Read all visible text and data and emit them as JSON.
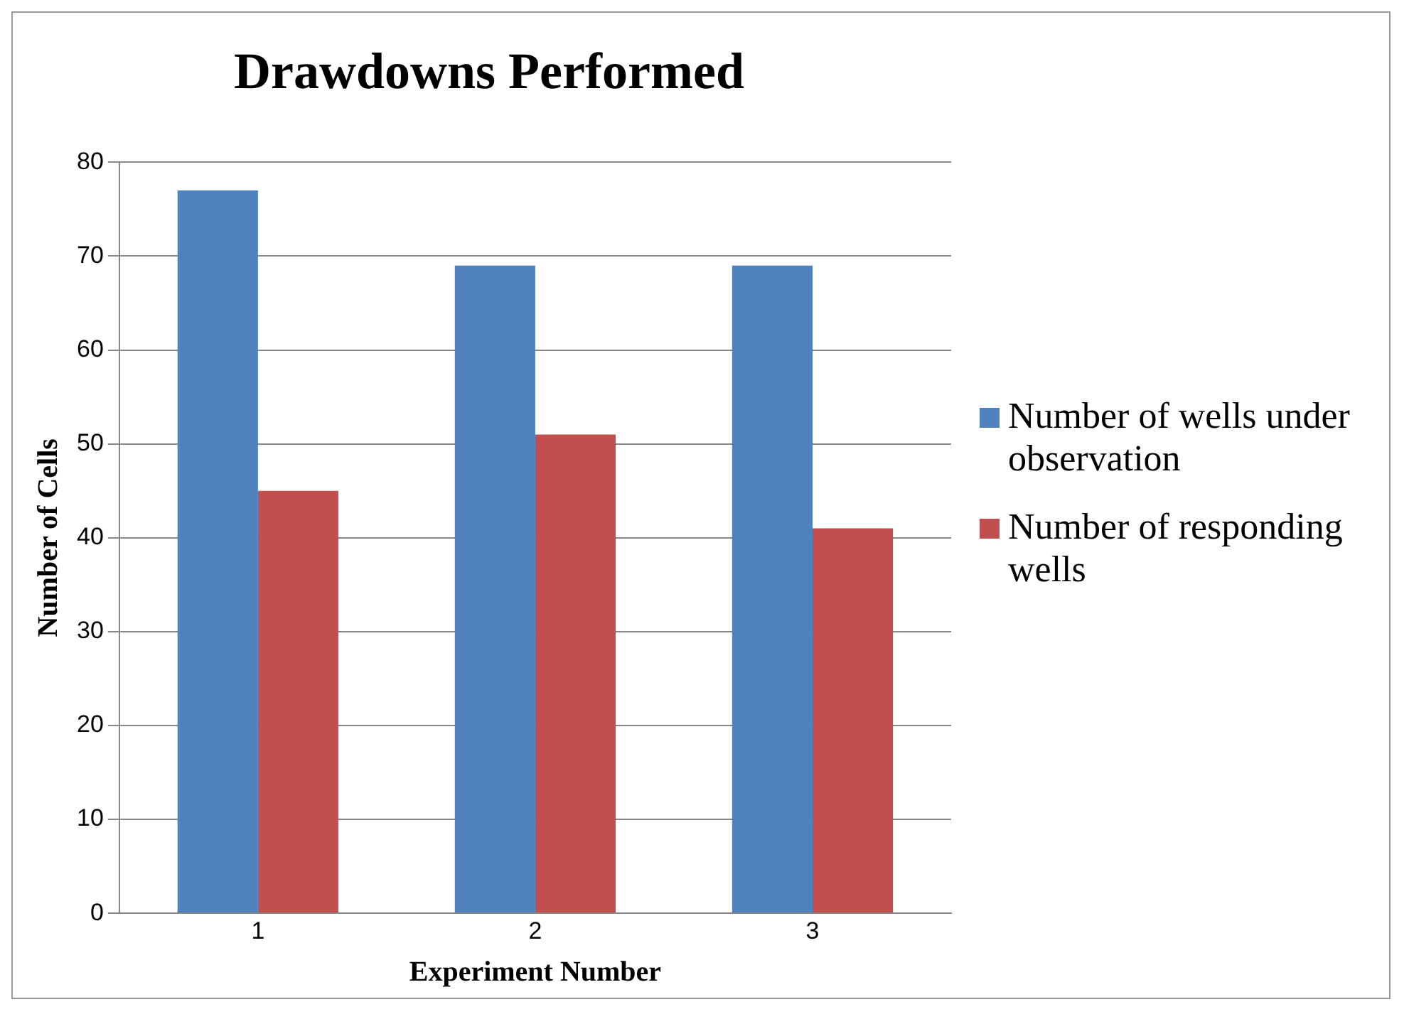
{
  "chart_data": {
    "type": "bar",
    "title": "Drawdowns Performed",
    "xlabel": "Experiment Number",
    "ylabel": "Number of Cells",
    "categories": [
      "1",
      "2",
      "3"
    ],
    "series": [
      {
        "name": "Number of wells under observation",
        "color": "#4f81bd",
        "values": [
          77,
          69,
          69
        ]
      },
      {
        "name": "Number of responding wells",
        "color": "#c0504d",
        "values": [
          45,
          51,
          41
        ]
      }
    ],
    "ylim": [
      0,
      80
    ],
    "yticks": [
      0,
      10,
      20,
      30,
      40,
      50,
      60,
      70,
      80
    ],
    "grid": "y",
    "legend": "right"
  }
}
